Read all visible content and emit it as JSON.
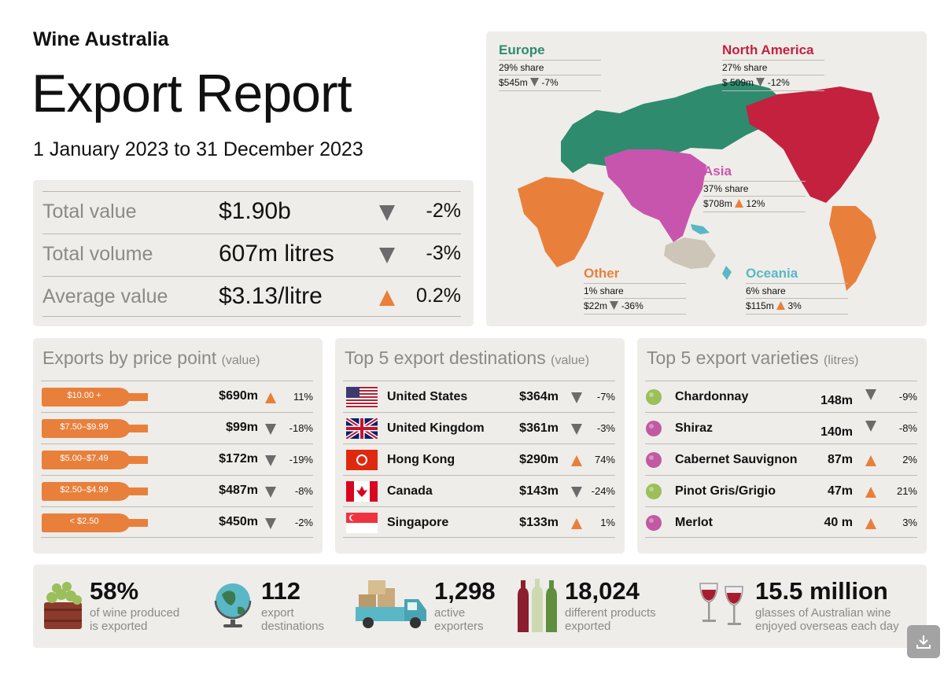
{
  "header": {
    "brand": "Wine Australia",
    "title": "Export Report",
    "period": "1 January 2023 to 31 December 2023"
  },
  "summary": [
    {
      "label": "Total value",
      "value": "$1.90b",
      "direction": "down",
      "change": "-2%"
    },
    {
      "label": "Total volume",
      "value": "607m litres",
      "direction": "down",
      "change": "-3%"
    },
    {
      "label": "Average value",
      "value": "$3.13/litre",
      "direction": "up",
      "change": "0.2%"
    }
  ],
  "regions": [
    {
      "id": "europe",
      "name": "Europe",
      "share": "29% share",
      "value": "$545m",
      "direction": "down",
      "change": "-7%",
      "color": "#2e8b6e"
    },
    {
      "id": "north-america",
      "name": "North America",
      "share": "27% share",
      "value": "$ 509m",
      "direction": "down",
      "change": "-12%",
      "color": "#c4213f"
    },
    {
      "id": "asia",
      "name": "Asia",
      "share": "37% share",
      "value": "$708m",
      "direction": "up",
      "change": "12%",
      "color": "#c855ad"
    },
    {
      "id": "other",
      "name": "Other",
      "share": "1% share",
      "value": "$22m",
      "direction": "down",
      "change": "-36%",
      "color": "#e8803c"
    },
    {
      "id": "oceania",
      "name": "Oceania",
      "share": "6% share",
      "value": "$115m",
      "direction": "up",
      "change": "3%",
      "color": "#5ab7c6"
    }
  ],
  "price_point": {
    "title": "Exports by price point",
    "unit": "(value)",
    "rows": [
      {
        "label": "$10.00 +",
        "value": "$690m",
        "direction": "up",
        "change": "11%"
      },
      {
        "label": "$7.50–$9.99",
        "value": "$99m",
        "direction": "down",
        "change": "-18%"
      },
      {
        "label": "$5.00–$7.49",
        "value": "$172m",
        "direction": "down",
        "change": "-19%"
      },
      {
        "label": "$2.50–$4.99",
        "value": "$487m",
        "direction": "down",
        "change": "-8%"
      },
      {
        "label": "< $2.50",
        "value": "$450m",
        "direction": "down",
        "change": "-2%"
      }
    ]
  },
  "destinations": {
    "title": "Top 5 export destinations",
    "unit": "(value)",
    "rows": [
      {
        "flag": "us",
        "name": "United States",
        "value": "$364m",
        "direction": "down",
        "change": "-7%"
      },
      {
        "flag": "uk",
        "name": "United Kingdom",
        "value": "$361m",
        "direction": "down",
        "change": "-3%"
      },
      {
        "flag": "hk",
        "name": "Hong Kong",
        "value": "$290m",
        "direction": "up",
        "change": "74%"
      },
      {
        "flag": "ca",
        "name": "Canada",
        "value": "$143m",
        "direction": "down",
        "change": "-24%"
      },
      {
        "flag": "sg",
        "name": "Singapore",
        "value": "$133m",
        "direction": "up",
        "change": "1%"
      }
    ]
  },
  "varieties": {
    "title": "Top 5 export varieties",
    "unit": "(litres)",
    "rows": [
      {
        "name": "Chardonnay",
        "value": "148m",
        "direction": "down",
        "change": "-9%",
        "grape": "white"
      },
      {
        "name": "Shiraz",
        "value": "140m",
        "direction": "down",
        "change": "-8%",
        "grape": "red"
      },
      {
        "name": "Cabernet Sauvignon",
        "value": "87m",
        "direction": "up",
        "change": "2%",
        "grape": "red"
      },
      {
        "name": "Pinot Gris/Grigio",
        "value": "47m",
        "direction": "up",
        "change": "21%",
        "grape": "white"
      },
      {
        "name": "Merlot",
        "value": "40 m",
        "direction": "up",
        "change": "3%",
        "grape": "red"
      }
    ]
  },
  "stats": [
    {
      "icon": "grape-basket-icon",
      "value": "58%",
      "line1": "of wine produced",
      "line2": "is exported"
    },
    {
      "icon": "globe-icon",
      "value": "112",
      "line1": "export",
      "line2": "destinations"
    },
    {
      "icon": "delivery-truck-icon",
      "value": "1,298",
      "line1": "active",
      "line2": "exporters"
    },
    {
      "icon": "wine-bottles-icon",
      "value": "18,024",
      "line1": "different products",
      "line2": "exported"
    },
    {
      "icon": "wine-glasses-icon",
      "value": "15.5 million",
      "line1": "glasses of Australian wine",
      "line2": "enjoyed overseas each day"
    }
  ],
  "colors": {
    "up": "#e8803c",
    "down": "#6b6b6b",
    "panel": "#eeede9",
    "bottle": "#e8803c",
    "white_grape": "#9bbf5a",
    "red_grape": "#c159a3"
  },
  "chart_data": {
    "type": "table",
    "summary": [
      {
        "metric": "Total value",
        "value": "$1.90b",
        "change_pct": -2
      },
      {
        "metric": "Total volume",
        "value": "607m litres",
        "change_pct": -3
      },
      {
        "metric": "Average value",
        "value": "$3.13/litre",
        "change_pct": 0.2
      }
    ],
    "regions": [
      {
        "name": "Europe",
        "share_pct": 29,
        "value_m": 545,
        "change_pct": -7
      },
      {
        "name": "North America",
        "share_pct": 27,
        "value_m": 509,
        "change_pct": -12
      },
      {
        "name": "Asia",
        "share_pct": 37,
        "value_m": 708,
        "change_pct": 12
      },
      {
        "name": "Other",
        "share_pct": 1,
        "value_m": 22,
        "change_pct": -36
      },
      {
        "name": "Oceania",
        "share_pct": 6,
        "value_m": 115,
        "change_pct": 3
      }
    ],
    "price_point_value_m": [
      690,
      99,
      172,
      487,
      450
    ],
    "destinations_value_m": [
      364,
      361,
      290,
      143,
      133
    ],
    "varieties_litres_m": [
      148,
      140,
      87,
      47,
      40
    ]
  }
}
